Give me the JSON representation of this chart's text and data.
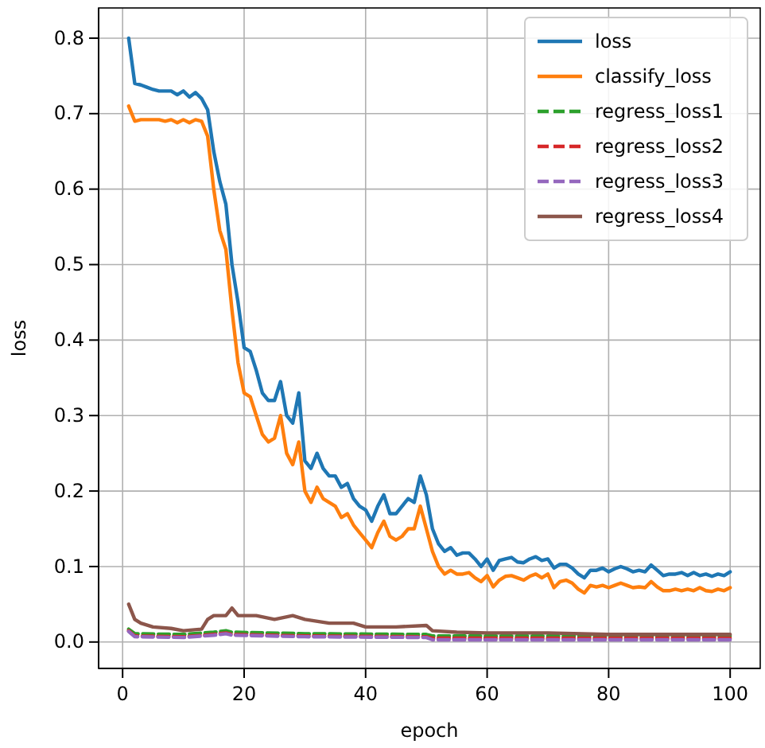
{
  "chart_data": {
    "type": "line",
    "xlabel": "epoch",
    "ylabel": "loss",
    "xlim": [
      -3.95,
      104.95
    ],
    "ylim": [
      -0.035,
      0.84
    ],
    "xticks": [
      0,
      20,
      40,
      60,
      80,
      100
    ],
    "yticks": [
      {
        "value": 0,
        "label": "0.0"
      },
      0.1,
      0.2,
      0.3,
      0.4,
      0.5,
      0.6,
      0.7,
      0.8
    ],
    "grid": true,
    "legend": "top right",
    "marker": "none",
    "x": [
      1,
      2,
      3,
      4,
      5,
      6,
      7,
      8,
      9,
      10,
      11,
      12,
      13,
      14,
      15,
      16,
      17,
      18,
      19,
      20,
      21,
      22,
      23,
      24,
      25,
      26,
      27,
      28,
      29,
      30,
      31,
      32,
      33,
      34,
      35,
      36,
      37,
      38,
      39,
      40,
      41,
      42,
      43,
      44,
      45,
      46,
      47,
      48,
      49,
      50,
      51,
      52,
      53,
      54,
      55,
      56,
      57,
      58,
      59,
      60,
      61,
      62,
      63,
      64,
      65,
      66,
      67,
      68,
      69,
      70,
      71,
      72,
      73,
      74,
      75,
      76,
      77,
      78,
      79,
      80,
      81,
      82,
      83,
      84,
      85,
      86,
      87,
      88,
      89,
      90,
      91,
      92,
      93,
      94,
      95,
      96,
      97,
      98,
      99,
      100
    ],
    "series": [
      {
        "name": "loss",
        "color": "#1f77b4",
        "line_style": "solid",
        "values": [
          0.8,
          0.74,
          0.738,
          0.735,
          0.732,
          0.73,
          0.73,
          0.73,
          0.725,
          0.73,
          0.722,
          0.728,
          0.72,
          0.705,
          0.65,
          0.61,
          0.58,
          0.5,
          0.45,
          0.39,
          0.385,
          0.36,
          0.33,
          0.32,
          0.32,
          0.345,
          0.3,
          0.29,
          0.33,
          0.24,
          0.23,
          0.25,
          0.23,
          0.22,
          0.22,
          0.205,
          0.21,
          0.19,
          0.18,
          0.175,
          0.16,
          0.18,
          0.195,
          0.17,
          0.17,
          0.18,
          0.19,
          0.185,
          0.22,
          0.195,
          0.15,
          0.13,
          0.12,
          0.125,
          0.115,
          0.118,
          0.118,
          0.11,
          0.1,
          0.11,
          0.095,
          0.108,
          0.11,
          0.112,
          0.106,
          0.105,
          0.11,
          0.113,
          0.108,
          0.11,
          0.098,
          0.103,
          0.103,
          0.098,
          0.09,
          0.085,
          0.095,
          0.095,
          0.098,
          0.093,
          0.097,
          0.1,
          0.097,
          0.093,
          0.095,
          0.093,
          0.102,
          0.095,
          0.088,
          0.09,
          0.09,
          0.092,
          0.088,
          0.092,
          0.088,
          0.09,
          0.087,
          0.09,
          0.088,
          0.093
        ]
      },
      {
        "name": "classify_loss",
        "color": "#ff7f0e",
        "line_style": "solid",
        "values": [
          0.71,
          0.69,
          0.692,
          0.692,
          0.692,
          0.692,
          0.69,
          0.692,
          0.688,
          0.692,
          0.688,
          0.692,
          0.69,
          0.67,
          0.6,
          0.545,
          0.52,
          0.44,
          0.37,
          0.33,
          0.325,
          0.3,
          0.275,
          0.265,
          0.27,
          0.3,
          0.25,
          0.235,
          0.265,
          0.2,
          0.185,
          0.205,
          0.19,
          0.185,
          0.18,
          0.165,
          0.17,
          0.155,
          0.145,
          0.135,
          0.125,
          0.145,
          0.16,
          0.14,
          0.135,
          0.14,
          0.15,
          0.15,
          0.18,
          0.15,
          0.12,
          0.1,
          0.09,
          0.095,
          0.09,
          0.09,
          0.092,
          0.085,
          0.08,
          0.088,
          0.073,
          0.082,
          0.087,
          0.088,
          0.085,
          0.082,
          0.087,
          0.09,
          0.085,
          0.09,
          0.072,
          0.08,
          0.082,
          0.078,
          0.07,
          0.065,
          0.075,
          0.073,
          0.075,
          0.072,
          0.075,
          0.078,
          0.075,
          0.072,
          0.073,
          0.072,
          0.08,
          0.073,
          0.068,
          0.068,
          0.07,
          0.068,
          0.07,
          0.068,
          0.072,
          0.068,
          0.067,
          0.07,
          0.068,
          0.072
        ]
      },
      {
        "name": "regress_loss1",
        "color": "#2ca02c",
        "line_style": "dashed",
        "x": [
          1,
          2,
          10,
          15,
          17,
          18,
          30,
          50,
          51,
          100
        ],
        "values": [
          0.017,
          0.011,
          0.01,
          0.013,
          0.015,
          0.013,
          0.011,
          0.01,
          0.008,
          0.008
        ]
      },
      {
        "name": "regress_loss2",
        "color": "#d62728",
        "line_style": "dashed",
        "x": [
          1,
          2,
          10,
          15,
          17,
          18,
          30,
          50,
          51,
          100
        ],
        "values": [
          0.015,
          0.008,
          0.007,
          0.01,
          0.012,
          0.01,
          0.008,
          0.007,
          0.005,
          0.005
        ]
      },
      {
        "name": "regress_loss3",
        "color": "#9467bd",
        "line_style": "dashed",
        "x": [
          1,
          2,
          10,
          15,
          17,
          18,
          30,
          50,
          51,
          100
        ],
        "values": [
          0.014,
          0.007,
          0.006,
          0.009,
          0.011,
          0.009,
          0.007,
          0.006,
          0.003,
          0.003
        ]
      },
      {
        "name": "regress_loss4",
        "color": "#8c564b",
        "line_style": "solid",
        "x": [
          1,
          2,
          3,
          5,
          8,
          10,
          13,
          14,
          15,
          17,
          18,
          19,
          22,
          25,
          28,
          30,
          34,
          38,
          40,
          45,
          50,
          51,
          55,
          60,
          70,
          80,
          90,
          100
        ],
        "values": [
          0.05,
          0.03,
          0.025,
          0.02,
          0.018,
          0.015,
          0.017,
          0.03,
          0.035,
          0.035,
          0.045,
          0.035,
          0.035,
          0.03,
          0.035,
          0.03,
          0.025,
          0.025,
          0.02,
          0.02,
          0.022,
          0.015,
          0.013,
          0.012,
          0.012,
          0.01,
          0.01,
          0.01
        ]
      }
    ]
  }
}
